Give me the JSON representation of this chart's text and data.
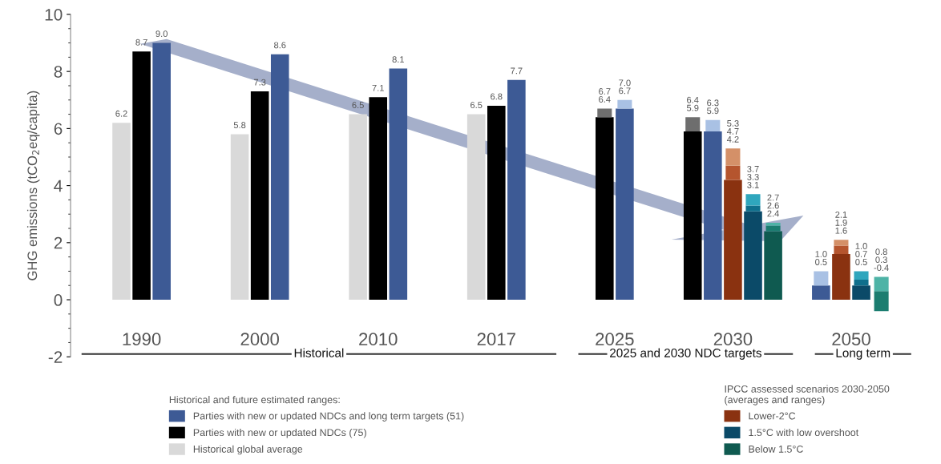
{
  "chart_data": {
    "type": "bar",
    "ylabel": "GHG emissions (tCO$_{2}$eq/capita)",
    "categories": [
      "1990",
      "2000",
      "2010",
      "2017",
      "2025",
      "2030",
      "2050"
    ],
    "series": [
      {
        "name": "Historical global average",
        "color": "#d9d9d9",
        "values": [
          6.2,
          5.8,
          6.5,
          6.5,
          null,
          null,
          null
        ],
        "value_labels": [
          "6.2",
          "5.8",
          "6.5",
          "6.5",
          null,
          null,
          null
        ]
      },
      {
        "name": "Parties with new or updated NDCs (75)",
        "color": "#000000",
        "values": [
          8.7,
          7.3,
          7.1,
          6.8,
          6.4,
          5.9,
          null
        ],
        "value_labels": [
          "8.7",
          "7.3",
          "7.1",
          "6.8",
          null,
          null,
          null
        ]
      },
      {
        "color": "#6e6e6e",
        "base": [
          null,
          null,
          null,
          null,
          6.4,
          5.9,
          null
        ],
        "values": [
          null,
          null,
          null,
          null,
          0.3,
          0.5,
          null
        ]
      },
      {
        "name": "Parties with new or updated NDCs and long term targets (51)",
        "color": "#3d5a95",
        "values": [
          9.0,
          8.6,
          8.1,
          7.7,
          6.7,
          5.9,
          0.5
        ],
        "value_labels": [
          "9.0",
          "8.6",
          "8.1",
          "7.7",
          null,
          null,
          null
        ]
      },
      {
        "color": "#a9c1e4",
        "base": [
          null,
          null,
          null,
          null,
          6.7,
          5.9,
          0.5
        ],
        "values": [
          null,
          null,
          null,
          null,
          0.3,
          0.4,
          0.5
        ]
      },
      {
        "name": "Lower-2°C",
        "color": "#8a3210",
        "values": [
          null,
          null,
          null,
          null,
          null,
          4.2,
          1.6
        ]
      },
      {
        "color": "#b5552e",
        "base": [
          null,
          null,
          null,
          null,
          null,
          4.2,
          1.6
        ],
        "values": [
          null,
          null,
          null,
          null,
          null,
          0.5,
          0.3
        ]
      },
      {
        "color": "#d49068",
        "base": [
          null,
          null,
          null,
          null,
          null,
          4.7,
          1.9
        ],
        "values": [
          null,
          null,
          null,
          null,
          null,
          0.6,
          0.2
        ]
      },
      {
        "name": "1.5°C with low overshoot",
        "color": "#0b4a68",
        "values": [
          null,
          null,
          null,
          null,
          null,
          3.1,
          0.5
        ]
      },
      {
        "color": "#0f6f8c",
        "base": [
          null,
          null,
          null,
          null,
          null,
          3.1,
          0.5
        ],
        "values": [
          null,
          null,
          null,
          null,
          null,
          0.2,
          0.2
        ]
      },
      {
        "color": "#2fa6bd",
        "base": [
          null,
          null,
          null,
          null,
          null,
          3.3,
          0.7
        ],
        "values": [
          null,
          null,
          null,
          null,
          null,
          0.4,
          0.3
        ]
      },
      {
        "name": "Below 1.5°C",
        "color": "#0f5a50",
        "values": [
          null,
          null,
          null,
          null,
          null,
          2.4,
          null
        ]
      },
      {
        "color": "#1b7d70",
        "base": [
          null,
          null,
          null,
          null,
          null,
          2.4,
          -0.4
        ],
        "values": [
          null,
          null,
          null,
          null,
          null,
          0.2,
          0.7
        ]
      },
      {
        "color": "#4db3a6",
        "base": [
          null,
          null,
          null,
          null,
          null,
          2.6,
          0.3
        ],
        "values": [
          null,
          null,
          null,
          null,
          null,
          0.1,
          0.5
        ]
      }
    ],
    "ylim": [
      -2,
      10
    ],
    "yticks": [
      -2,
      0,
      2,
      4,
      6,
      8,
      10
    ],
    "legend": "bottom",
    "legend_title": "Historical and future estimated ranges:",
    "annotations": [
      "Historical",
      "2025 and 2030 NDC targets",
      "Long term",
      "IPCC assessed scenarios 2030-2050\n(averages and ranges)",
      {
        "text": "6.7\n6.4",
        "x": "2025",
        "y": 6.7
      },
      {
        "text": "7.0\n6.7",
        "x": "2025",
        "y": 7.0
      },
      {
        "text": "6.4\n5.9",
        "y": 6.4
      },
      {
        "text": "6.3\n5.9",
        "y": 6.3
      },
      {
        "text": "5.3\n4.7\n4.2",
        "x": "2030",
        "y": 5.3
      },
      {
        "text": "3.7\n3.3\n3.1",
        "y": 3.7
      },
      {
        "text": "2.7\n2.6\n2.4",
        "y": 2.7
      },
      {
        "text": "1.0\n0.5",
        "x": "2050",
        "y": 1.0
      },
      {
        "text": "2.1\n1.9\n1.6",
        "x": "2050",
        "y": 2.1
      },
      {
        "text": "1.0\n0.7\n0.5",
        "x": "2050",
        "y": 1.0
      },
      {
        "text": "0.8\n0.3\n-0.4",
        "x": "2050",
        "y": 0.8
      }
    ]
  }
}
